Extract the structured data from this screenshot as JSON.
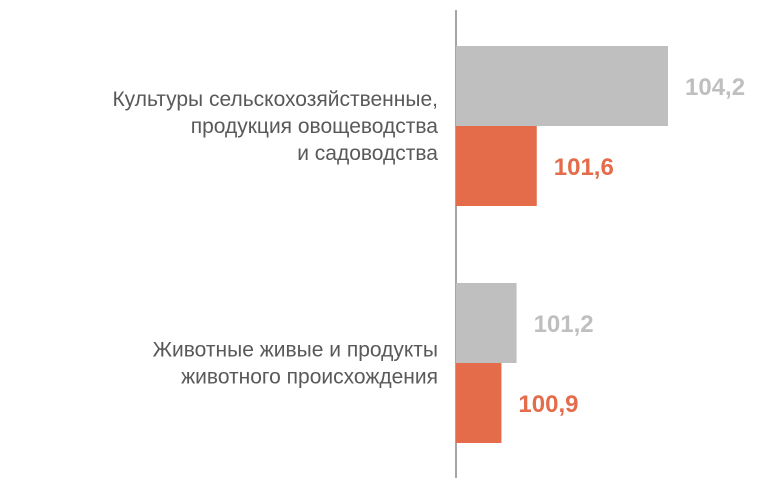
{
  "chart_data": {
    "type": "bar",
    "orientation": "horizontal",
    "categories": [
      [
        "Культуры сельскохозяйственные,",
        "продукция овощеводства",
        "и садоводства"
      ],
      [
        "Животные живые и продукты",
        "животного происхождения"
      ]
    ],
    "series": [
      {
        "values": [
          104.2,
          101.2
        ],
        "labels": [
          "104,2",
          "101,2"
        ],
        "color": "#bfbfbf"
      },
      {
        "values": [
          101.6,
          100.9
        ],
        "labels": [
          "101,6",
          "100,9"
        ],
        "color": "#e46c4a"
      }
    ],
    "baseline": 100,
    "xlim": [
      100,
      105.4
    ],
    "title": "",
    "xlabel": "",
    "ylabel": "",
    "grid": false,
    "legend": "none",
    "axis_color": "#a6a6a6"
  }
}
